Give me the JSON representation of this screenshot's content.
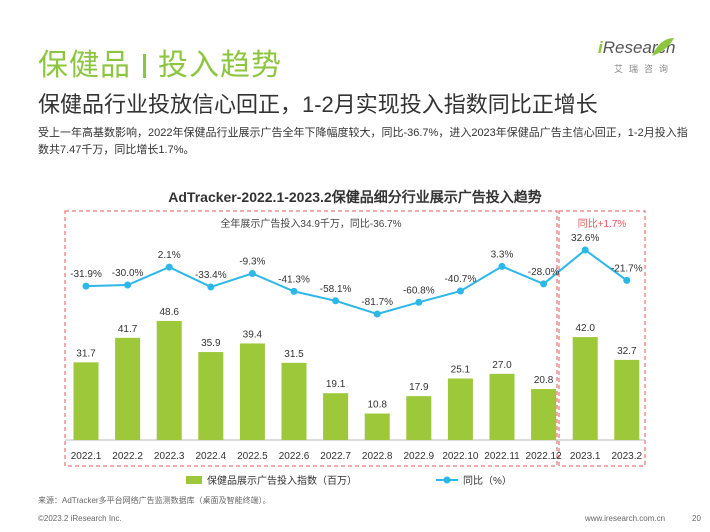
{
  "header": {
    "title_left": "保健品",
    "title_right": "投入趋势",
    "subtitle": "保健品行业投放信心回正，1-2月实现投入指数同比正增长",
    "description": "受上一年高基数影响，2022年保健品行业展示广告全年下降幅度较大，同比-36.7%，进入2023年保健品广告主信心回正，1-2月投入指数共7.47千万，同比增长1.7%。"
  },
  "logo": {
    "brand_i": "i",
    "brand_rest": "Research",
    "cn": "艾瑞咨询"
  },
  "chart_data": {
    "type": "bar+line",
    "title": "AdTracker-2022.1-2023.2保健品细分行业展示广告投入趋势",
    "categories": [
      "2022.1",
      "2022.2",
      "2022.3",
      "2022.4",
      "2022.5",
      "2022.6",
      "2022.7",
      "2022.8",
      "2022.9",
      "2022.10",
      "2022.11",
      "2022.12",
      "2023.1",
      "2023.2"
    ],
    "bar_series": {
      "name": "保健品展示广告投入指数（百万）",
      "values": [
        31.7,
        41.7,
        48.6,
        35.9,
        39.4,
        31.5,
        19.1,
        10.8,
        17.9,
        25.1,
        27.0,
        20.8,
        42.0,
        32.7
      ],
      "labels": [
        "31.7",
        "41.7",
        "48.6",
        "35.9",
        "39.4",
        "31.5",
        "19.1",
        "10.8",
        "17.9",
        "25.1",
        "27.0",
        "20.8",
        "42.0",
        "32.7"
      ],
      "color": "#9cc83a"
    },
    "line_series": {
      "name": "同比（%）",
      "values": [
        -31.9,
        -30.0,
        2.1,
        -33.4,
        -9.3,
        -41.3,
        -58.1,
        -81.7,
        -60.8,
        -40.7,
        3.3,
        -28.0,
        32.6,
        -21.7
      ],
      "labels": [
        "-31.9%",
        "-30.0%",
        "2.1%",
        "-33.4%",
        "-9.3%",
        "-41.3%",
        "-58.1%",
        "-81.7%",
        "-60.8%",
        "-40.7%",
        "3.3%",
        "-28.0%",
        "32.6%",
        "-21.7%"
      ],
      "color": "#2cb7e8"
    },
    "annotation_2022": "全年展示广告投入34.9千万，同比-36.7%",
    "annotation_2023": "同比+1.7%",
    "annotation_color": "#e05a5a",
    "legend_position": "bottom"
  },
  "source": "来源：AdTracker多平台网络广告监测数据库（桌面及智能终端）。",
  "footer": {
    "copyright": "©2023.2 iResearch Inc.",
    "website": "www.iresearch.com.cn",
    "page": "20"
  }
}
